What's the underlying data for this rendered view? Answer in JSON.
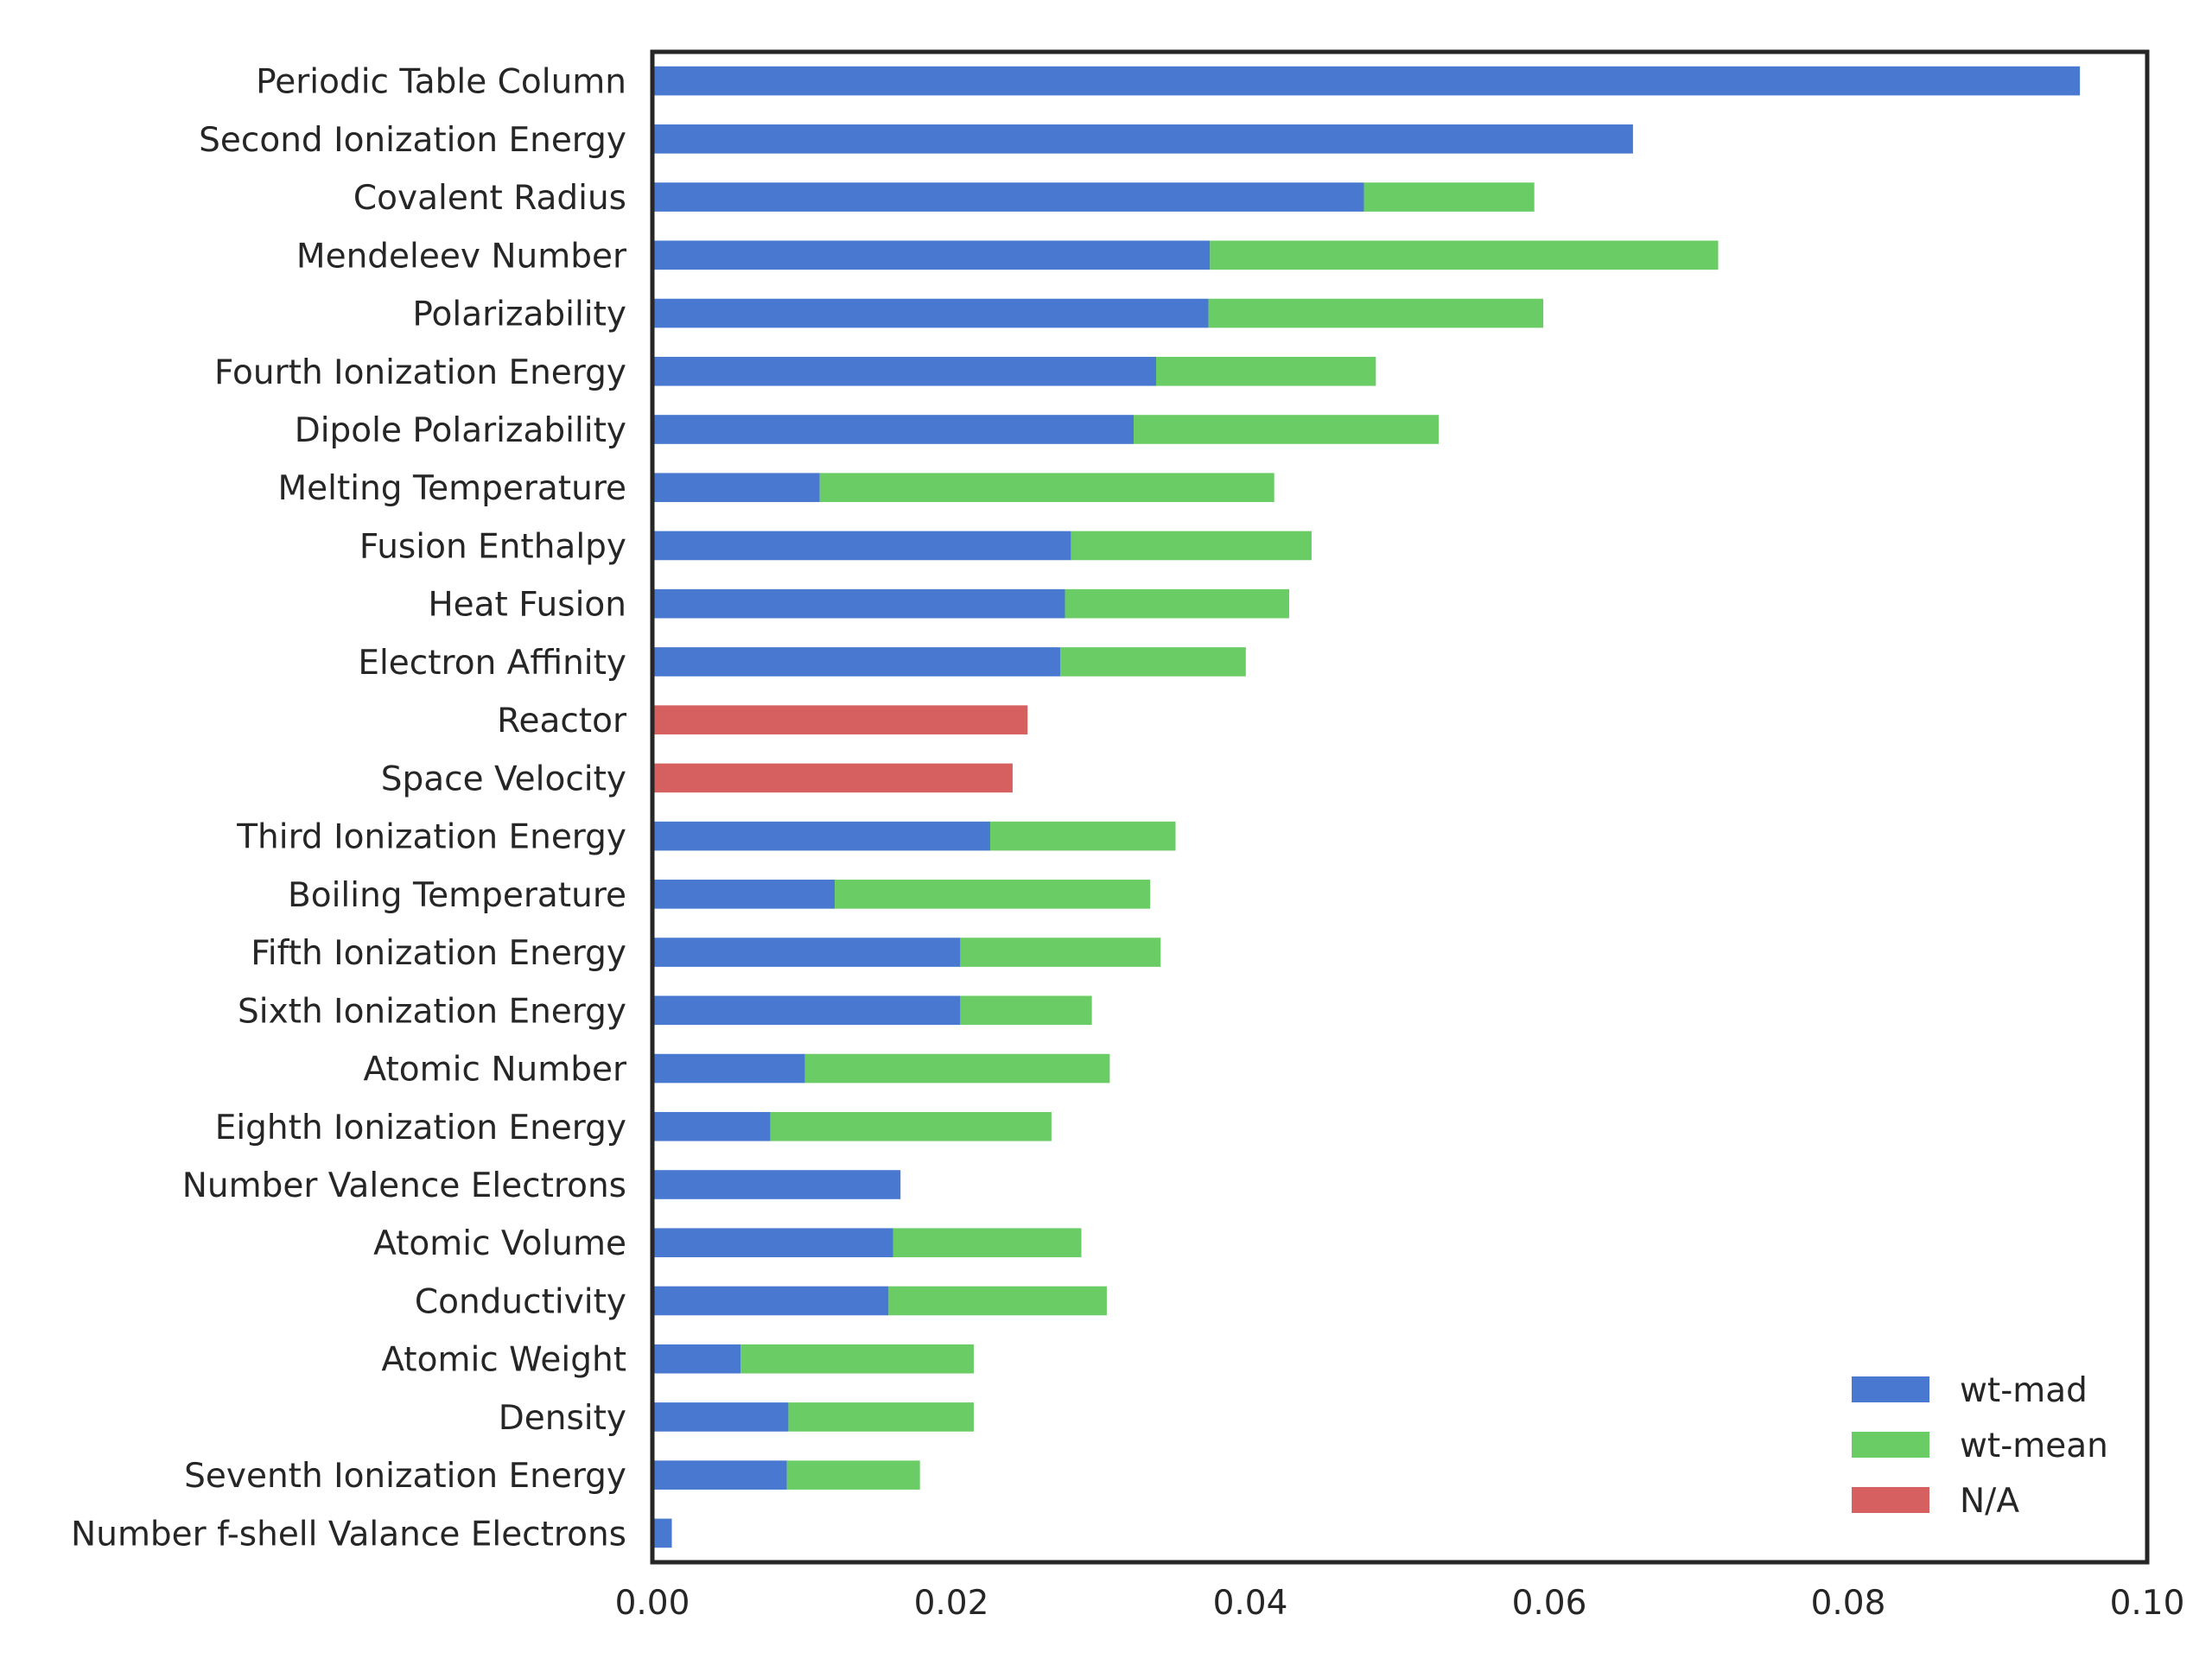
{
  "chart_data": {
    "type": "bar",
    "orientation": "horizontal",
    "stacked": true,
    "categories": [
      "Periodic Table Column",
      "Second Ionization Energy",
      "Covalent Radius",
      "Mendeleev Number",
      "Polarizability",
      "Fourth Ionization Energy",
      "Dipole Polarizability",
      "Melting Temperature",
      "Fusion Enthalpy",
      "Heat Fusion",
      "Electron Affinity",
      "Reactor",
      "Space Velocity",
      "Third Ionization Energy",
      "Boiling Temperature",
      "Fifth Ionization Energy",
      "Sixth Ionization Energy",
      "Atomic Number",
      "Eighth Ionization Energy",
      "Number Valence Electrons",
      "Atomic Volume",
      "Conductivity",
      "Atomic Weight",
      "Density",
      "Seventh Ionization Energy",
      "Number f-shell Valance Electrons"
    ],
    "series": [
      {
        "name": "wt-mad",
        "color": "#4878d0",
        "values": [
          0.0955,
          0.0656,
          0.0476,
          0.0373,
          0.0372,
          0.0337,
          0.0322,
          0.0112,
          0.028,
          0.0276,
          0.0273,
          0,
          0,
          0.0226,
          0.0122,
          0.0206,
          0.0206,
          0.0102,
          0.0079,
          0.0166,
          0.0161,
          0.0158,
          0.0059,
          0.0091,
          0.009,
          0.0013
        ]
      },
      {
        "name": "wt-mean",
        "color": "#6acc64",
        "values": [
          0,
          0,
          0.0114,
          0.034,
          0.0224,
          0.0147,
          0.0204,
          0.0304,
          0.0161,
          0.015,
          0.0124,
          0,
          0,
          0.0124,
          0.0211,
          0.0134,
          0.0088,
          0.0204,
          0.0188,
          0,
          0.0126,
          0.0146,
          0.0156,
          0.0124,
          0.0089,
          0
        ]
      },
      {
        "name": "N/A",
        "color": "#d65f5f",
        "values": [
          0,
          0,
          0,
          0,
          0,
          0,
          0,
          0,
          0,
          0,
          0,
          0.0251,
          0.0241,
          0,
          0,
          0,
          0,
          0,
          0,
          0,
          0,
          0,
          0,
          0,
          0,
          0
        ]
      }
    ],
    "xlim": [
      0.0,
      0.1
    ],
    "xticks": [
      "0.00",
      "0.02",
      "0.04",
      "0.06",
      "0.08",
      "0.10"
    ],
    "title": "",
    "xlabel": "",
    "ylabel": "",
    "grid": false,
    "legend_position": "bottom-right"
  }
}
